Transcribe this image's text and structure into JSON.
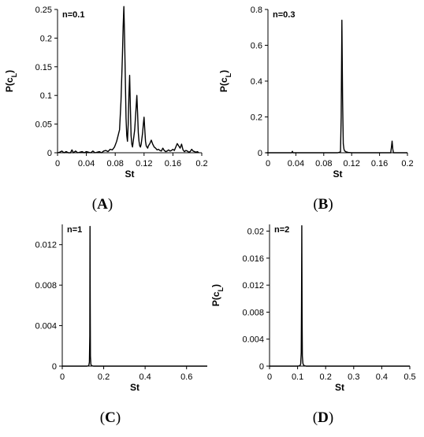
{
  "chart_data": [
    {
      "type": "line",
      "panel_label": "(A)",
      "annotation": "n=0.1",
      "xlabel": "St",
      "ylabel_main": "P(c",
      "ylabel_sub": "L",
      "ylabel_close": ")",
      "xlim": [
        0,
        0.2
      ],
      "ylim": [
        0,
        0.25
      ],
      "xticks": [
        0,
        0.04,
        0.08,
        0.12,
        0.16,
        0.2
      ],
      "xtick_labels": [
        "0",
        "0.04",
        "0.08",
        "0.12",
        "0.16",
        "0.2"
      ],
      "yticks": [
        0,
        0.05,
        0.1,
        0.15,
        0.2,
        0.25
      ],
      "ytick_labels": [
        "0",
        "0.05",
        "0.1",
        "0.15",
        "0.2",
        "0.25"
      ],
      "series": [
        {
          "x": [
            0.0,
            0.003,
            0.006,
            0.009,
            0.012,
            0.015,
            0.018,
            0.02,
            0.022,
            0.025,
            0.028,
            0.031,
            0.034,
            0.037,
            0.04,
            0.043,
            0.046,
            0.049,
            0.052,
            0.055,
            0.058,
            0.061,
            0.064,
            0.067,
            0.07,
            0.073,
            0.076,
            0.079,
            0.082,
            0.084,
            0.086,
            0.088,
            0.09,
            0.091,
            0.092,
            0.093,
            0.094,
            0.095,
            0.096,
            0.097,
            0.098,
            0.099,
            0.1,
            0.101,
            0.102,
            0.103,
            0.104,
            0.105,
            0.106,
            0.107,
            0.108,
            0.109,
            0.11,
            0.111,
            0.112,
            0.113,
            0.114,
            0.115,
            0.116,
            0.117,
            0.118,
            0.119,
            0.12,
            0.121,
            0.122,
            0.123,
            0.124,
            0.125,
            0.126,
            0.128,
            0.13,
            0.132,
            0.134,
            0.136,
            0.138,
            0.14,
            0.142,
            0.144,
            0.146,
            0.148,
            0.15,
            0.152,
            0.154,
            0.156,
            0.158,
            0.16,
            0.162,
            0.164,
            0.166,
            0.168,
            0.17,
            0.172,
            0.174,
            0.176,
            0.178,
            0.18,
            0.182,
            0.184,
            0.186,
            0.188,
            0.19,
            0.192,
            0.194,
            0.196
          ],
          "y": [
            0.0,
            0.001,
            0.003,
            0.0,
            0.002,
            0.0,
            0.0,
            0.005,
            0.0,
            0.003,
            0.0,
            0.001,
            0.002,
            0.0,
            0.002,
            0.001,
            0.0,
            0.003,
            0.0,
            0.001,
            0.002,
            0.0,
            0.003,
            0.004,
            0.002,
            0.006,
            0.005,
            0.01,
            0.02,
            0.03,
            0.04,
            0.09,
            0.17,
            0.22,
            0.255,
            0.2,
            0.13,
            0.06,
            0.03,
            0.02,
            0.05,
            0.1,
            0.135,
            0.08,
            0.03,
            0.015,
            0.01,
            0.02,
            0.03,
            0.04,
            0.06,
            0.08,
            0.1,
            0.07,
            0.035,
            0.02,
            0.012,
            0.01,
            0.015,
            0.025,
            0.035,
            0.05,
            0.062,
            0.04,
            0.02,
            0.012,
            0.01,
            0.008,
            0.012,
            0.016,
            0.022,
            0.015,
            0.01,
            0.008,
            0.005,
            0.006,
            0.004,
            0.003,
            0.008,
            0.004,
            0.002,
            0.003,
            0.005,
            0.003,
            0.004,
            0.006,
            0.004,
            0.01,
            0.016,
            0.012,
            0.008,
            0.015,
            0.005,
            0.002,
            0.004,
            0.003,
            0.001,
            0.002,
            0.006,
            0.003,
            0.002,
            0.001,
            0.002,
            0.0
          ]
        }
      ]
    },
    {
      "type": "line",
      "panel_label": "(B)",
      "annotation": "n=0.3",
      "xlabel": "St",
      "ylabel_main": "P(c",
      "ylabel_sub": "L",
      "ylabel_close": ")",
      "xlim": [
        0,
        0.2
      ],
      "ylim": [
        0,
        0.8
      ],
      "xticks": [
        0,
        0.04,
        0.08,
        0.12,
        0.16,
        0.2
      ],
      "xtick_labels": [
        "0",
        "0.04",
        "0.08",
        "0.12",
        "0.16",
        "0.2"
      ],
      "yticks": [
        0,
        0.2,
        0.4,
        0.6,
        0.8
      ],
      "ytick_labels": [
        "0",
        "0.2",
        "0.4",
        "0.6",
        "0.8"
      ],
      "series": [
        {
          "x": [
            -0.005,
            0.0,
            0.02,
            0.034,
            0.035,
            0.036,
            0.06,
            0.1,
            0.104,
            0.105,
            0.106,
            0.107,
            0.108,
            0.109,
            0.11,
            0.112,
            0.115,
            0.12,
            0.14,
            0.16,
            0.176,
            0.177,
            0.178,
            0.179,
            0.18,
            0.2
          ],
          "y": [
            0.0,
            0.0,
            0.0,
            0.0,
            0.008,
            0.0,
            0.0,
            0.0,
            0.005,
            0.2,
            0.74,
            0.3,
            0.05,
            0.02,
            0.01,
            0.005,
            0.002,
            0.0,
            0.0,
            0.0,
            0.0,
            0.03,
            0.065,
            0.02,
            0.0,
            0.0
          ]
        }
      ]
    },
    {
      "type": "line",
      "panel_label": "(C)",
      "annotation": "n=1",
      "xlabel": "St",
      "ylabel_main": "",
      "ylabel_sub": "",
      "ylabel_close": "",
      "xlim": [
        0,
        0.7
      ],
      "ylim": [
        0,
        0.014
      ],
      "xticks": [
        0,
        0.2,
        0.4,
        0.6
      ],
      "xtick_labels": [
        "0",
        "0.2",
        "0.4",
        "0.6"
      ],
      "yticks": [
        0,
        0.004,
        0.008,
        0.012
      ],
      "ytick_labels": [
        "0",
        "0.004",
        "0.008",
        "0.012"
      ],
      "series": [
        {
          "x": [
            0.0,
            0.12,
            0.128,
            0.131,
            0.133,
            0.134,
            0.135,
            0.136,
            0.138,
            0.141,
            0.15,
            0.7
          ],
          "y": [
            0.0,
            0.0,
            5e-05,
            0.0004,
            0.003,
            0.0138,
            0.006,
            0.001,
            0.0002,
            5e-05,
            0.0,
            0.0
          ]
        }
      ]
    },
    {
      "type": "line",
      "panel_label": "(D)",
      "annotation": "n=2",
      "xlabel": "St",
      "ylabel_main": "P(c",
      "ylabel_sub": "L",
      "ylabel_close": ")",
      "xlim": [
        0,
        0.5
      ],
      "ylim": [
        0,
        0.021
      ],
      "xticks": [
        0,
        0.1,
        0.2,
        0.3,
        0.4,
        0.5
      ],
      "xtick_labels": [
        "0",
        "0.1",
        "0.2",
        "0.3",
        "0.4",
        "0.5"
      ],
      "yticks": [
        0,
        0.004,
        0.008,
        0.012,
        0.016,
        0.02
      ],
      "ytick_labels": [
        "0",
        "0.004",
        "0.008",
        "0.012",
        "0.016",
        "0.02"
      ],
      "series": [
        {
          "x": [
            0.0,
            0.1,
            0.108,
            0.111,
            0.113,
            0.114,
            0.115,
            0.116,
            0.117,
            0.119,
            0.122,
            0.13,
            0.5
          ],
          "y": [
            0.0,
            0.0,
            5e-05,
            0.0003,
            0.002,
            0.009,
            0.0208,
            0.008,
            0.0015,
            0.0004,
            0.0001,
            0.0,
            0.0
          ]
        }
      ]
    }
  ]
}
